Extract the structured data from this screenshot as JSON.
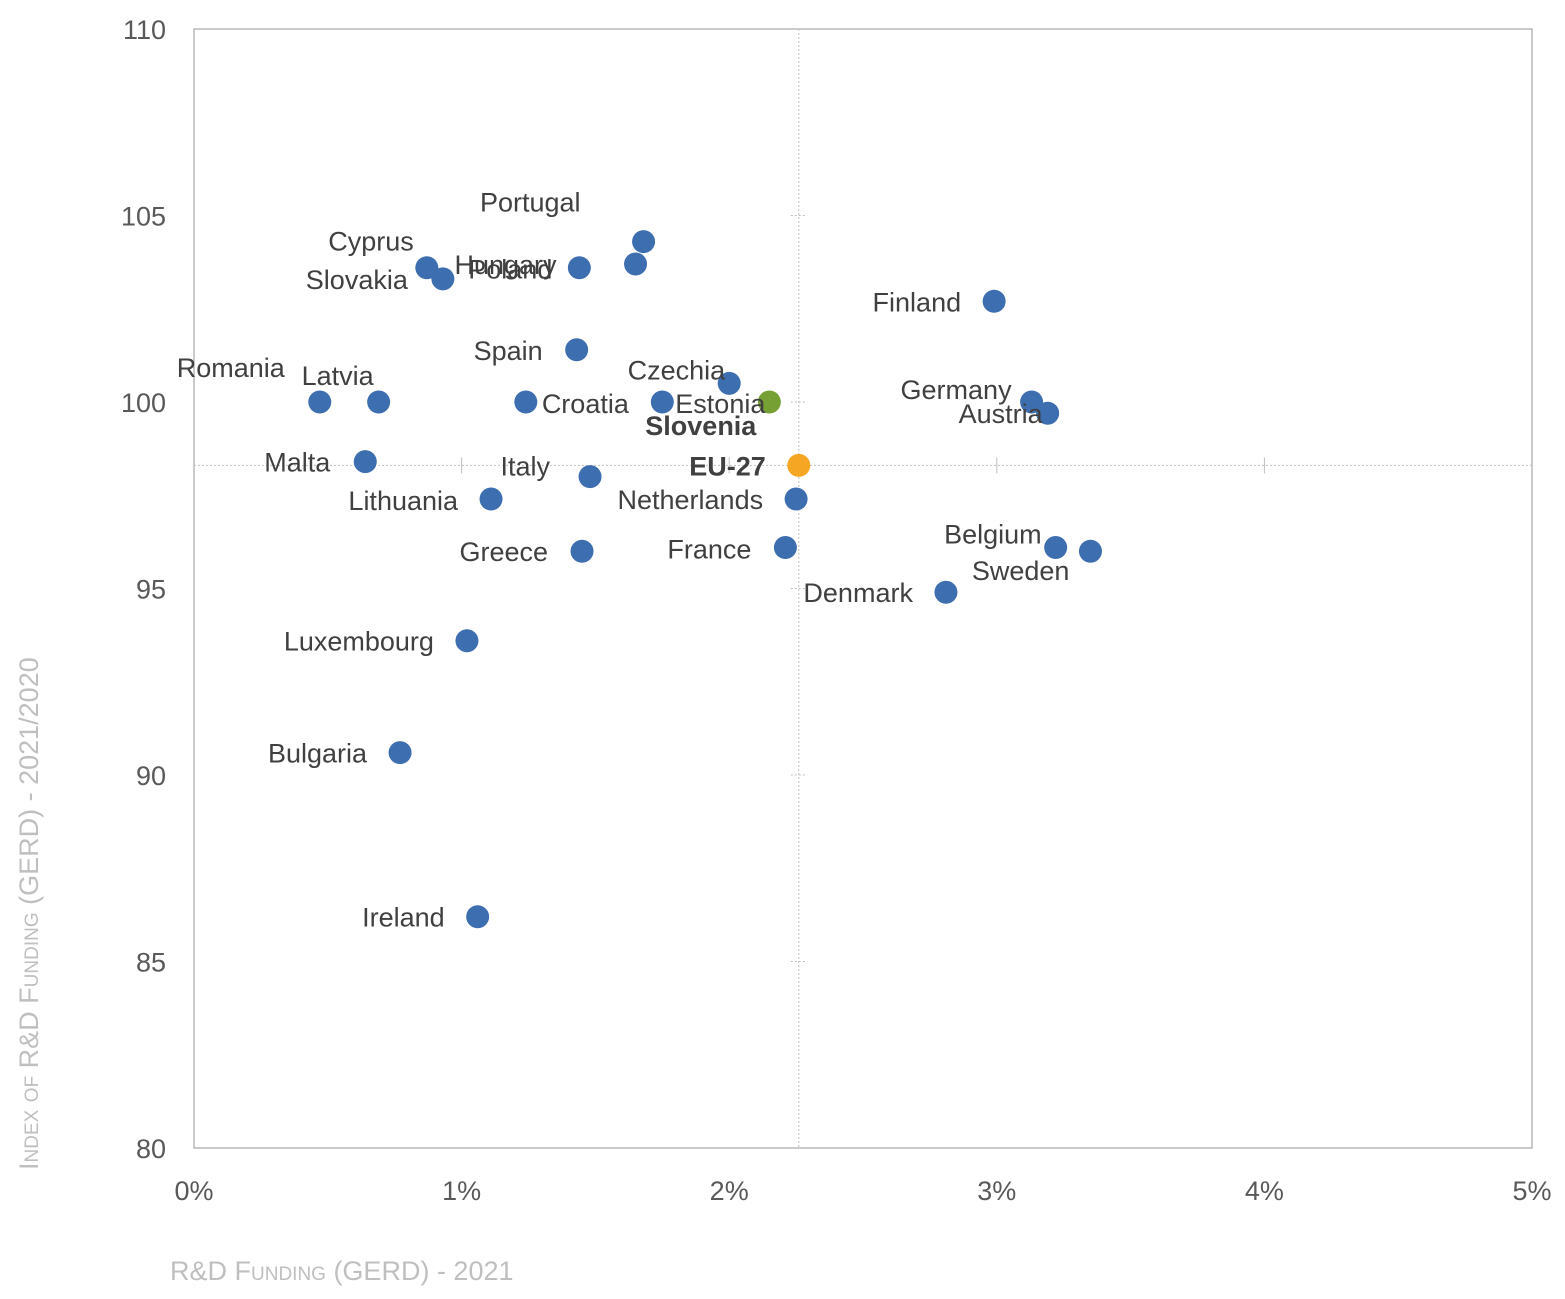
{
  "chart_data": {
    "type": "scatter",
    "xlabel": "R&D Funding (GERD) - 2021",
    "ylabel": "Index of R&D Funding (GERD) - 2021/2020",
    "xlim": [
      0,
      5
    ],
    "ylim": [
      80,
      110
    ],
    "x_ticks": [
      "0%",
      "1%",
      "2%",
      "3%",
      "4%",
      "5%"
    ],
    "y_ticks": [
      "80",
      "85",
      "90",
      "95",
      "100",
      "105",
      "110"
    ],
    "x_tick_values": [
      0,
      1,
      2,
      3,
      4,
      5
    ],
    "y_tick_values": [
      80,
      85,
      90,
      95,
      100,
      105,
      110
    ],
    "reference_lines": {
      "x": 2.26,
      "y": 98.3
    },
    "colors": {
      "default": "#3d6eb0",
      "Slovenia": "#76a033",
      "EU-27": "#f5a623"
    },
    "points": [
      {
        "name": "Portugal",
        "x": 1.68,
        "y": 104.3
      },
      {
        "name": "Hungary",
        "x": 1.65,
        "y": 103.7
      },
      {
        "name": "Poland",
        "x": 1.44,
        "y": 103.6
      },
      {
        "name": "Cyprus",
        "x": 0.87,
        "y": 103.6
      },
      {
        "name": "Slovakia",
        "x": 0.93,
        "y": 103.3
      },
      {
        "name": "Finland",
        "x": 2.99,
        "y": 102.7
      },
      {
        "name": "Spain",
        "x": 1.43,
        "y": 101.4
      },
      {
        "name": "Czechia",
        "x": 2.0,
        "y": 100.5
      },
      {
        "name": "Slovenia",
        "x": 2.15,
        "y": 100.0
      },
      {
        "name": "Germany",
        "x": 3.13,
        "y": 100.0
      },
      {
        "name": "Austria",
        "x": 3.19,
        "y": 99.7
      },
      {
        "name": "Romania",
        "x": 0.47,
        "y": 100.0
      },
      {
        "name": "Latvia",
        "x": 0.69,
        "y": 100.0
      },
      {
        "name": "Croatia",
        "x": 1.24,
        "y": 100.0
      },
      {
        "name": "Estonia",
        "x": 1.75,
        "y": 100.0
      },
      {
        "name": "Malta",
        "x": 0.64,
        "y": 98.4
      },
      {
        "name": "Italy",
        "x": 1.48,
        "y": 98.0
      },
      {
        "name": "EU-27",
        "x": 2.26,
        "y": 98.3
      },
      {
        "name": "Lithuania",
        "x": 1.11,
        "y": 97.4
      },
      {
        "name": "Netherlands",
        "x": 2.25,
        "y": 97.4
      },
      {
        "name": "Greece",
        "x": 1.45,
        "y": 96.0
      },
      {
        "name": "France",
        "x": 2.21,
        "y": 96.1
      },
      {
        "name": "Belgium",
        "x": 3.22,
        "y": 96.1
      },
      {
        "name": "Sweden",
        "x": 3.35,
        "y": 96.0
      },
      {
        "name": "Denmark",
        "x": 2.81,
        "y": 94.9
      },
      {
        "name": "Luxembourg",
        "x": 1.02,
        "y": 93.6
      },
      {
        "name": "Bulgaria",
        "x": 0.77,
        "y": 90.6
      },
      {
        "name": "Ireland",
        "x": 1.06,
        "y": 86.2
      }
    ]
  }
}
